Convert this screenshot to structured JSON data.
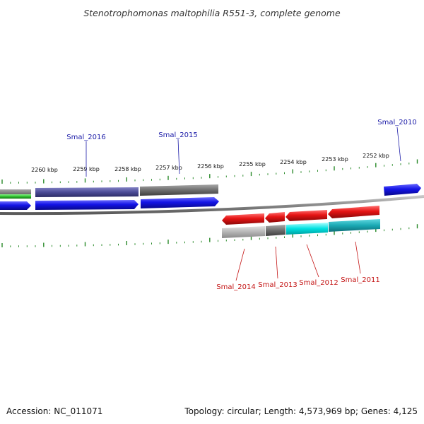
{
  "title": "Stenotrophomonas maltophilia R551-3, complete genome",
  "footer": {
    "accession": "Accession: NC_011071",
    "summary": "Topology: circular; Length: 4,573,969 bp; Genes: 4,125"
  },
  "scale_labels": [
    "2260 kbp",
    "2259 kbp",
    "2258 kbp",
    "2257 kbp",
    "2256 kbp",
    "2255 kbp",
    "2254 kbp",
    "2253 kbp",
    "2252 kbp"
  ],
  "gene_labels": {
    "top": [
      "Smal_2016",
      "Smal_2015",
      "Smal_2010"
    ],
    "bottom": [
      "Smal_2014",
      "Smal_2013",
      "Smal_2012",
      "Smal_2011"
    ]
  },
  "colors": {
    "tick": "#2a8a2a",
    "backbone": "#8a8a8a",
    "forward_cds": "#1414e6",
    "reverse_cds": "#e61414",
    "label_top": "#1c1ca8",
    "label_bottom": "#c41414",
    "cog_slate": "#4b4b96",
    "cog_gray": "#6e6e6e",
    "cog_green": "#2fbf2f",
    "cog_light": "#b4b4b4",
    "cog_cyan": "#00e0e0",
    "cog_teal": "#1aa9b4"
  }
}
